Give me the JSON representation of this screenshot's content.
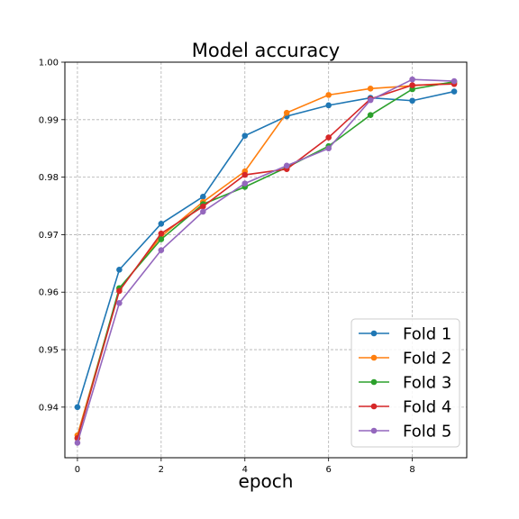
{
  "chart_data": {
    "type": "line",
    "title": "Model accuracy",
    "xlabel": "epoch",
    "ylabel": "",
    "x": [
      0,
      1,
      2,
      3,
      4,
      5,
      6,
      7,
      8,
      9
    ],
    "xlim": [
      -0.3,
      9.3
    ],
    "ylim": [
      0.9312,
      1.0
    ],
    "xticks": [
      0,
      2,
      4,
      6,
      8
    ],
    "yticks": [
      0.94,
      0.95,
      0.96,
      0.97,
      0.98,
      0.99,
      1.0
    ],
    "ytick_labels": [
      "0.94",
      "0.95",
      "0.96",
      "0.97",
      "0.98",
      "0.99",
      "1.00"
    ],
    "grid": true,
    "legend_position": "bottom-right",
    "series": [
      {
        "name": "Fold 1",
        "color": "#1f77b4",
        "values": [
          0.94,
          0.9639,
          0.9719,
          0.9766,
          0.9872,
          0.9906,
          0.9925,
          0.9938,
          0.9933,
          0.9949
        ]
      },
      {
        "name": "Fold 2",
        "color": "#ff7f0e",
        "values": [
          0.9351,
          0.9605,
          0.9697,
          0.9757,
          0.981,
          0.9912,
          0.9943,
          0.9954,
          0.9959,
          0.9964
        ]
      },
      {
        "name": "Fold 3",
        "color": "#2ca02c",
        "values": [
          0.9346,
          0.9607,
          0.9692,
          0.9753,
          0.9783,
          0.9817,
          0.9854,
          0.9908,
          0.9953,
          0.9966
        ]
      },
      {
        "name": "Fold 4",
        "color": "#d62728",
        "values": [
          0.9346,
          0.9602,
          0.9702,
          0.9749,
          0.9804,
          0.9814,
          0.9869,
          0.9936,
          0.996,
          0.9962
        ]
      },
      {
        "name": "Fold 5",
        "color": "#9467bd",
        "values": [
          0.9338,
          0.9581,
          0.9673,
          0.974,
          0.9789,
          0.982,
          0.985,
          0.9934,
          0.997,
          0.9967
        ]
      }
    ]
  }
}
